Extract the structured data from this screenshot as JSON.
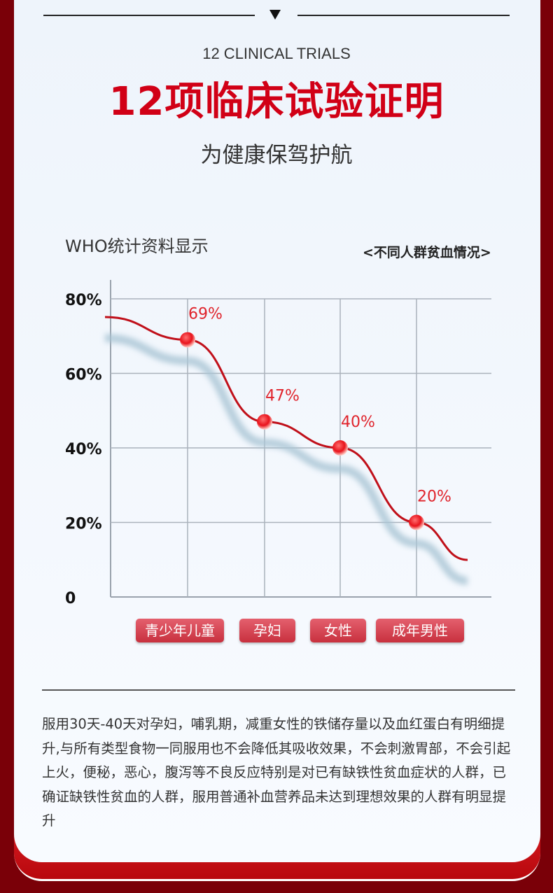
{
  "header": {
    "subtitle_en": "12 CLINICAL TRIALS",
    "title": "12项临床试验证明",
    "tagline": "为健康保驾护航"
  },
  "chart_data": {
    "type": "line",
    "title": "WHO统计资料显示",
    "legend": "<不同人群贫血情况>",
    "categories": [
      "青少年儿童",
      "孕妇",
      "女性",
      "成年男性"
    ],
    "values": [
      69,
      47,
      40,
      20
    ],
    "data_labels": [
      "69%",
      "47%",
      "40%",
      "20%"
    ],
    "yticks": [
      "0",
      "20%",
      "40%",
      "60%",
      "80%"
    ],
    "ylim": [
      0,
      80
    ],
    "grid": true,
    "colors": {
      "line": "#c0101a",
      "shadow": "#a8c4d4",
      "marker": "#e8131c"
    }
  },
  "description": "服用30天-40天对孕妇，哺乳期，减重女性的铁储存量以及血红蛋白有明细提升,与所有类型食物一同服用也不会降低其吸收效果，不会刺激胃部，不会引起上火，便秘，恶心，腹泻等不良反应特别是对已有缺铁性贫血症状的人群，已确证缺铁性贫血的人群，服用普通补血营养品未达到理想效果的人群有明显提升"
}
